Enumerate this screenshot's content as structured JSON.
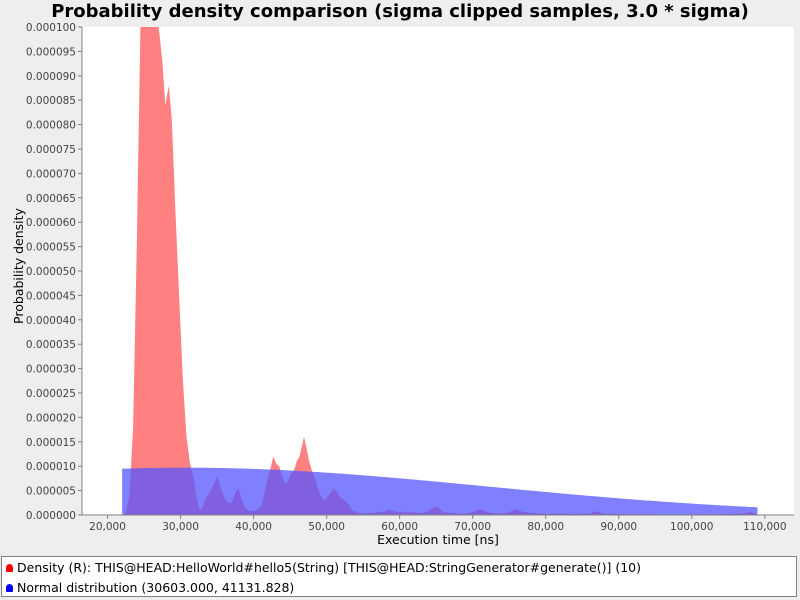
{
  "chart_data": {
    "type": "area",
    "title": "Probability density comparison (sigma clipped samples, 3.0 * sigma)",
    "xlabel": "Execution time [ns]",
    "ylabel": "Probability density",
    "xlim": [
      16500,
      114000
    ],
    "ylim": [
      0,
      0.0001
    ],
    "x_ticks": [
      20000,
      30000,
      40000,
      50000,
      60000,
      70000,
      80000,
      90000,
      100000,
      110000
    ],
    "x_tick_labels": [
      "20,000",
      "30,000",
      "40,000",
      "50,000",
      "60,000",
      "70,000",
      "80,000",
      "90,000",
      "100,000",
      "110,000"
    ],
    "y_ticks": [
      0,
      5e-06,
      1e-05,
      1.5e-05,
      2e-05,
      2.5e-05,
      3e-05,
      3.5e-05,
      4e-05,
      4.5e-05,
      5e-05,
      5.5e-05,
      6e-05,
      6.5e-05,
      7e-05,
      7.5e-05,
      8e-05,
      8.5e-05,
      9e-05,
      9.5e-05,
      0.0001
    ],
    "y_tick_labels": [
      "0.000000",
      "0.000005",
      "0.000010",
      "0.000015",
      "0.000020",
      "0.000025",
      "0.000030",
      "0.000035",
      "0.000040",
      "0.000045",
      "0.000050",
      "0.000055",
      "0.000060",
      "0.000065",
      "0.000070",
      "0.000075",
      "0.000080",
      "0.000085",
      "0.000090",
      "0.000095",
      "0.000100"
    ],
    "legend_position": "bottom",
    "series": [
      {
        "name": "Density (R): THIS@HEAD:HelloWorld#hello5(String) [THIS@HEAD:StringGenerator#generate()] (10)",
        "color": "#ff5555",
        "points": [
          [
            22000,
            0.0
          ],
          [
            22500,
            5e-07
          ],
          [
            23000,
            4e-06
          ],
          [
            23500,
            1.8e-05
          ],
          [
            24000,
            5.5e-05
          ],
          [
            24500,
            0.0001
          ],
          [
            25500,
            0.0001
          ],
          [
            26500,
            0.0001
          ],
          [
            27000,
            0.0001
          ],
          [
            27500,
            9.3e-05
          ],
          [
            27900,
            8.4e-05
          ],
          [
            28400,
            8.8e-05
          ],
          [
            28800,
            8.1e-05
          ],
          [
            29300,
            6.2e-05
          ],
          [
            29800,
            4.5e-05
          ],
          [
            30300,
            2.8e-05
          ],
          [
            30800,
            1.6e-05
          ],
          [
            31300,
            1.05e-05
          ],
          [
            31800,
            7.5e-06
          ],
          [
            32200,
            3.5e-06
          ],
          [
            32600,
            1e-06
          ],
          [
            33000,
            1.5e-06
          ],
          [
            33500,
            3.5e-06
          ],
          [
            34100,
            5e-06
          ],
          [
            34600,
            6.5e-06
          ],
          [
            35000,
            8e-06
          ],
          [
            35500,
            5.5e-06
          ],
          [
            36000,
            3.5e-06
          ],
          [
            36500,
            2.5e-06
          ],
          [
            37000,
            2.5e-06
          ],
          [
            37500,
            4.5e-06
          ],
          [
            37900,
            5.5e-06
          ],
          [
            38300,
            3.5e-06
          ],
          [
            38800,
            1.5e-06
          ],
          [
            39400,
            8e-07
          ],
          [
            40000,
            8e-07
          ],
          [
            40600,
            1.2e-06
          ],
          [
            41100,
            2e-06
          ],
          [
            41500,
            4.5e-06
          ],
          [
            41900,
            7.5e-06
          ],
          [
            42300,
            9.5e-06
          ],
          [
            42700,
            1.2e-05
          ],
          [
            43100,
            1.05e-05
          ],
          [
            43500,
            1e-05
          ],
          [
            43900,
            8e-06
          ],
          [
            44300,
            6.5e-06
          ],
          [
            44700,
            7e-06
          ],
          [
            45100,
            8.5e-06
          ],
          [
            45500,
            9e-06
          ],
          [
            45900,
            1.1e-05
          ],
          [
            46300,
            1.2e-05
          ],
          [
            46600,
            1.4e-05
          ],
          [
            46900,
            1.6e-05
          ],
          [
            47200,
            1.4e-05
          ],
          [
            47600,
            1.1e-05
          ],
          [
            48000,
            9e-06
          ],
          [
            48400,
            7.5e-06
          ],
          [
            48800,
            5.5e-06
          ],
          [
            49200,
            4e-06
          ],
          [
            49600,
            3e-06
          ],
          [
            50000,
            3.5e-06
          ],
          [
            50500,
            4.5e-06
          ],
          [
            51000,
            5.5e-06
          ],
          [
            51500,
            4.5e-06
          ],
          [
            52000,
            3.5e-06
          ],
          [
            52500,
            3e-06
          ],
          [
            53000,
            2.2e-06
          ],
          [
            53500,
            1e-06
          ],
          [
            54200,
            5e-07
          ],
          [
            55000,
            3e-07
          ],
          [
            56000,
            4e-07
          ],
          [
            57000,
            6e-07
          ],
          [
            58000,
            7e-07
          ],
          [
            58500,
            1.2e-06
          ],
          [
            59000,
            8e-07
          ],
          [
            60000,
            6e-07
          ],
          [
            61000,
            7e-07
          ],
          [
            62000,
            5e-07
          ],
          [
            63000,
            4e-07
          ],
          [
            64000,
            8e-07
          ],
          [
            64800,
            1.8e-06
          ],
          [
            65300,
            1.5e-06
          ],
          [
            66000,
            6e-07
          ],
          [
            67000,
            4e-07
          ],
          [
            68500,
            2e-07
          ],
          [
            69500,
            4e-07
          ],
          [
            70500,
            8e-07
          ],
          [
            71000,
            1.2e-06
          ],
          [
            71500,
            9e-07
          ],
          [
            72500,
            4e-07
          ],
          [
            74000,
            3e-07
          ],
          [
            75000,
            6e-07
          ],
          [
            75800,
            1.2e-06
          ],
          [
            76500,
            8e-07
          ],
          [
            78000,
            4e-07
          ],
          [
            80000,
            2e-07
          ],
          [
            82000,
            3e-07
          ],
          [
            84000,
            2e-07
          ],
          [
            86000,
            3e-07
          ],
          [
            87000,
            8e-07
          ],
          [
            87800,
            3e-07
          ],
          [
            90000,
            2e-07
          ],
          [
            95000,
            1e-07
          ],
          [
            100000,
            1e-07
          ],
          [
            105000,
            2e-07
          ],
          [
            107000,
            3e-07
          ],
          [
            108000,
            7e-07
          ],
          [
            108600,
            4e-07
          ],
          [
            109000,
            0.0
          ]
        ]
      },
      {
        "name": "Normal distribution (30603.000, 41131.828)",
        "color": "#5555ff",
        "mean": 30603.0,
        "sd": 41131.828,
        "x_range": [
          22000,
          109000
        ]
      }
    ]
  }
}
